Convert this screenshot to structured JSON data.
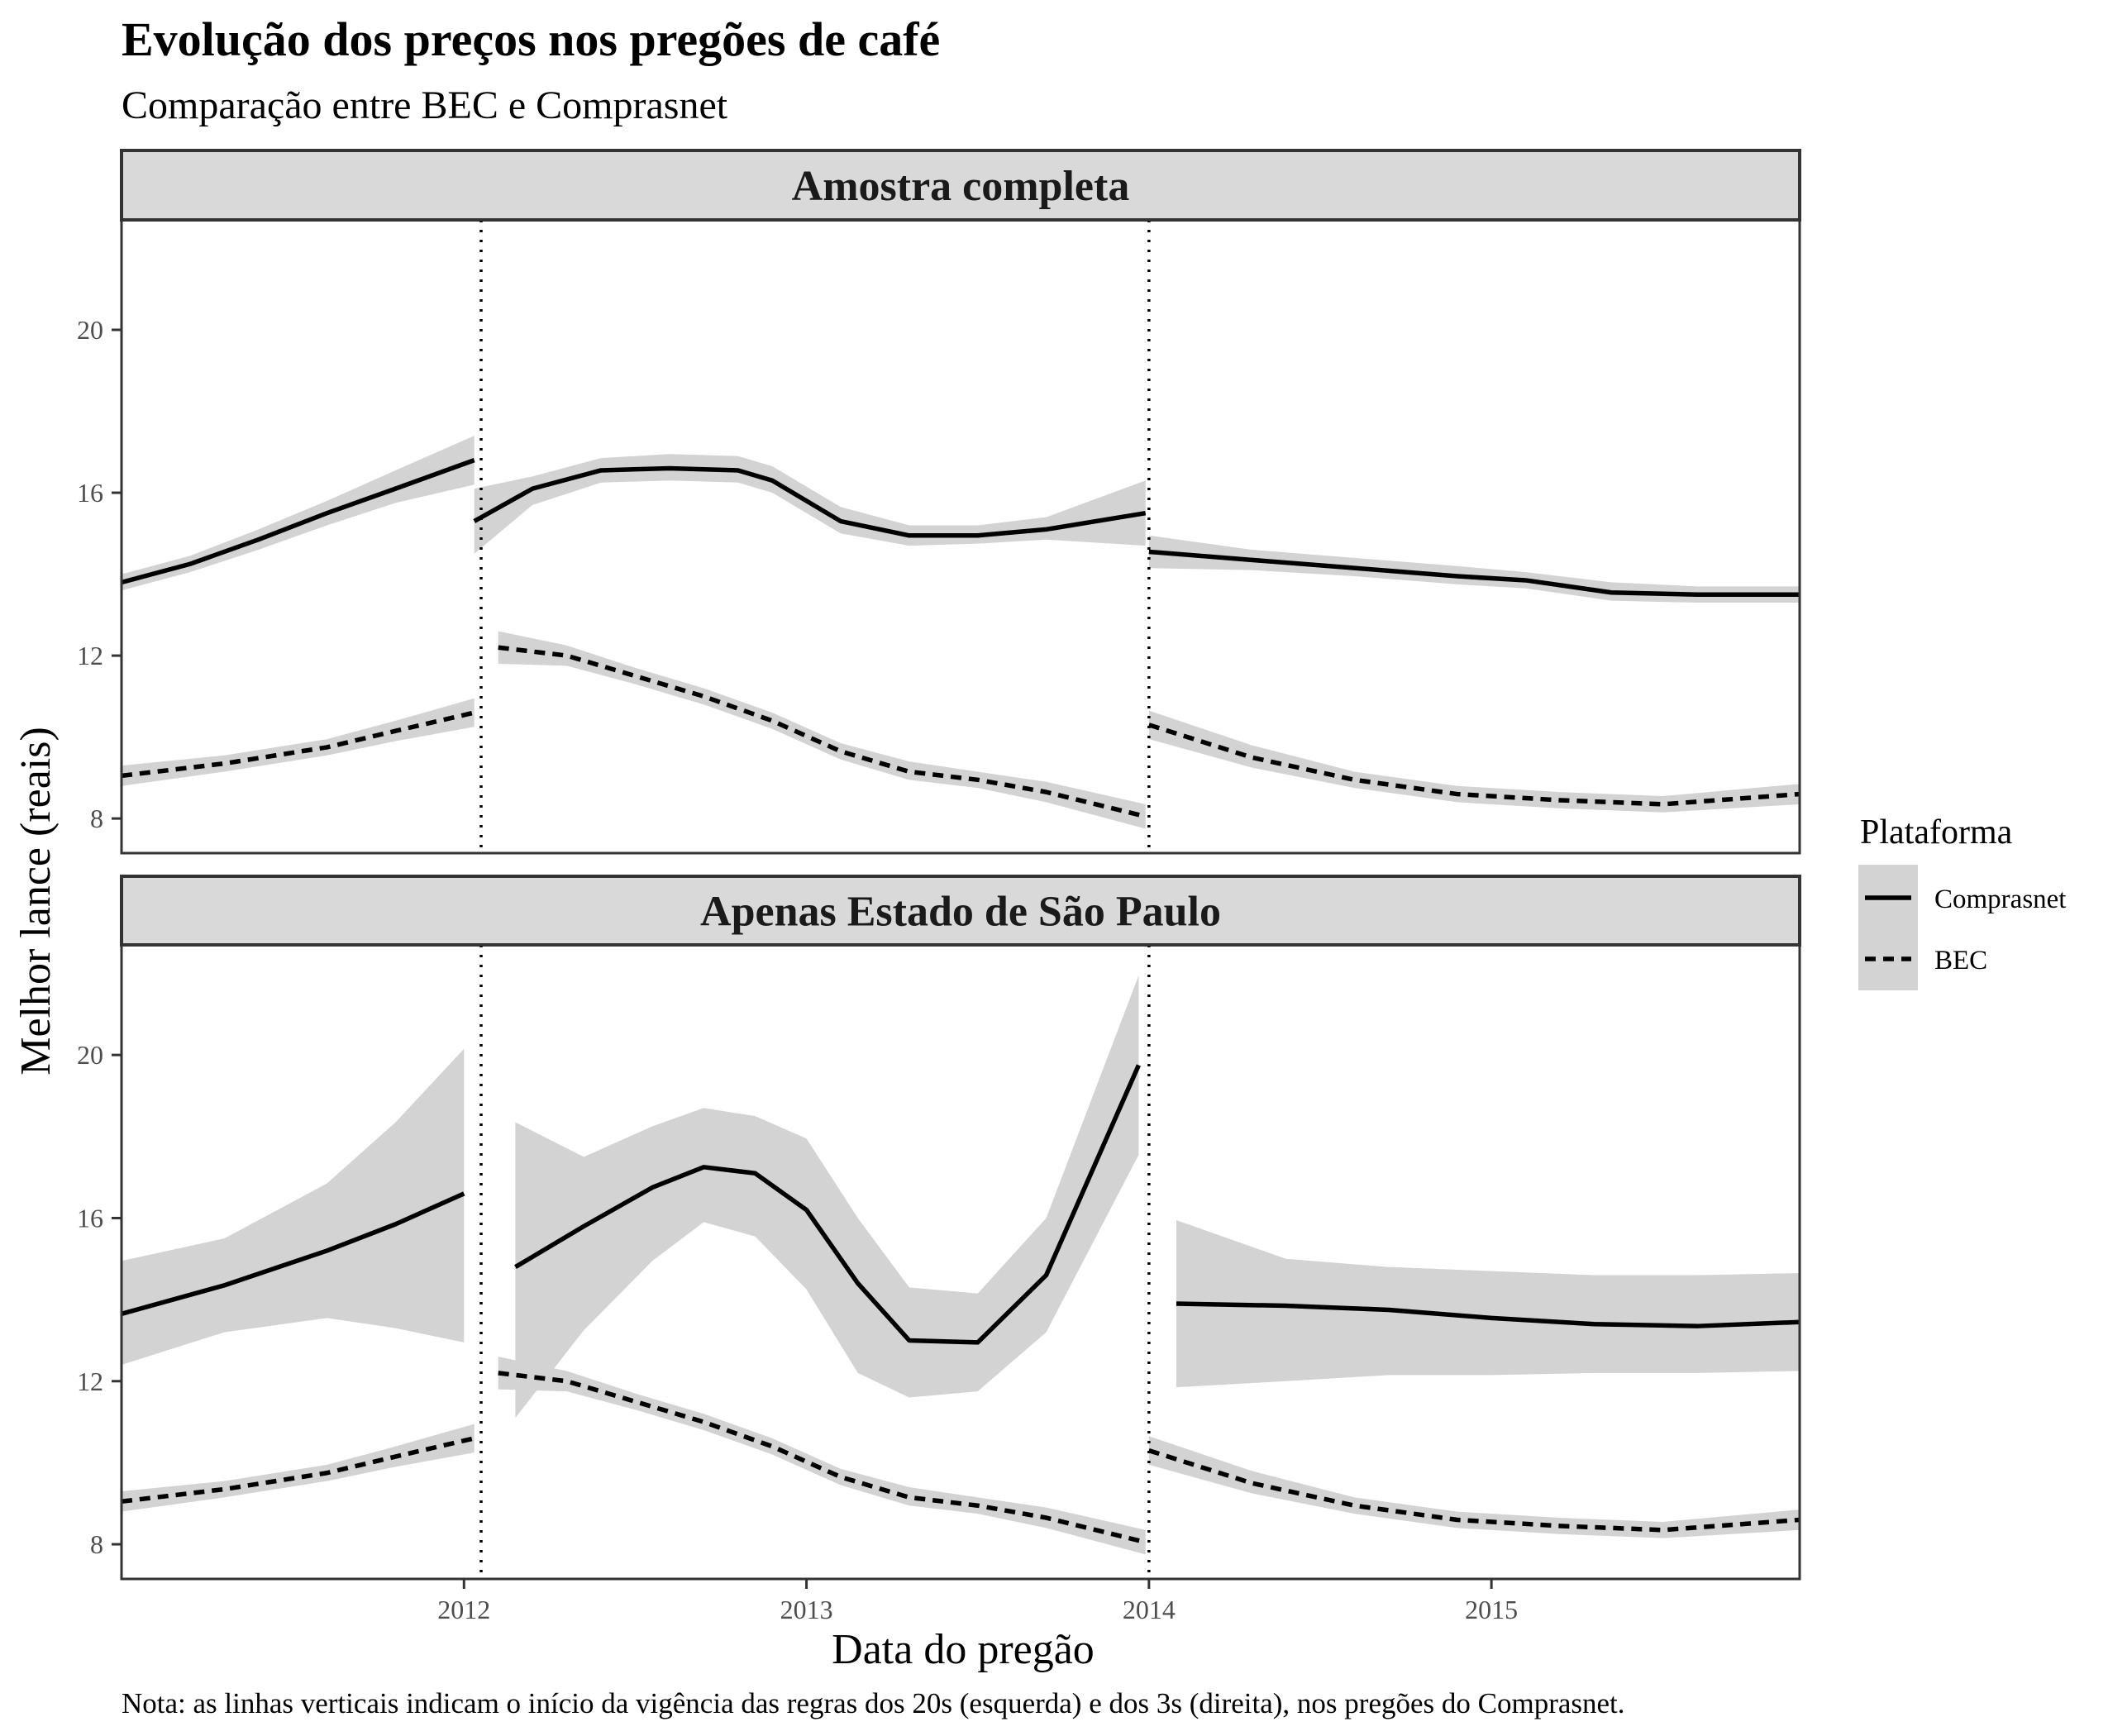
{
  "title": "Evolução dos preços nos pregões de café",
  "subtitle": "Comparação entre BEC e Comprasnet",
  "caption": "Nota: as linhas verticais indicam o início da vigência das regras dos 20s (esquerda) e dos 3s (direita), nos pregões do Comprasnet.",
  "x_axis_title": "Data do pregão",
  "y_axis_title": "Melhor lance (reais)",
  "legend": {
    "title": "Plataforma",
    "items": [
      {
        "label": "Comprasnet",
        "style": "solid"
      },
      {
        "label": "BEC",
        "style": "dashed"
      }
    ]
  },
  "colors": {
    "line": "#000000",
    "ribbon": "#d3d3d3",
    "strip_fill": "#d9d9d9",
    "strip_border": "#333333",
    "panel_border": "#333333",
    "tick_label": "#4d4d4d"
  },
  "chart_data": {
    "type": "line",
    "x_scale": "date",
    "xlim": [
      2011.0,
      2015.9
    ],
    "x_ticks": [
      {
        "value": 2012,
        "label": "2012"
      },
      {
        "value": 2013,
        "label": "2013"
      },
      {
        "value": 2014,
        "label": "2014"
      },
      {
        "value": 2015,
        "label": "2015"
      }
    ],
    "y_ticks": [
      8,
      12,
      16,
      20
    ],
    "ylim": [
      7.15,
      22.7
    ],
    "vlines": [
      {
        "x": 2012.05,
        "style": "dotted"
      },
      {
        "x": 2014.0,
        "style": "dotted"
      }
    ],
    "grid": false,
    "legend_position": "right",
    "panels": [
      {
        "name": "Amostra completa",
        "series": [
          {
            "name": "Comprasnet",
            "style": "solid",
            "segments": [
              {
                "x": [
                  2011.0,
                  2011.2,
                  2011.4,
                  2011.6,
                  2011.8,
                  2012.03
                ],
                "y": [
                  13.8,
                  14.25,
                  14.85,
                  15.5,
                  16.1,
                  16.8
                ],
                "lo": [
                  13.6,
                  14.05,
                  14.6,
                  15.2,
                  15.75,
                  16.2
                ],
                "hi": [
                  14.0,
                  14.45,
                  15.1,
                  15.8,
                  16.55,
                  17.4
                ]
              },
              {
                "x": [
                  2012.03,
                  2012.2,
                  2012.4,
                  2012.6,
                  2012.8,
                  2012.9,
                  2013.1,
                  2013.3,
                  2013.5,
                  2013.7,
                  2013.99
                ],
                "y": [
                  15.3,
                  16.1,
                  16.55,
                  16.6,
                  16.55,
                  16.3,
                  15.3,
                  14.95,
                  14.95,
                  15.1,
                  15.5
                ],
                "lo": [
                  14.5,
                  15.7,
                  16.25,
                  16.3,
                  16.25,
                  16.0,
                  15.0,
                  14.7,
                  14.75,
                  14.85,
                  14.7
                ],
                "hi": [
                  16.1,
                  16.4,
                  16.85,
                  16.95,
                  16.9,
                  16.65,
                  15.65,
                  15.2,
                  15.2,
                  15.4,
                  16.3
                ]
              },
              {
                "x": [
                  2014.0,
                  2014.3,
                  2014.6,
                  2014.9,
                  2015.1,
                  2015.35,
                  2015.6,
                  2015.9
                ],
                "y": [
                  14.55,
                  14.35,
                  14.15,
                  13.95,
                  13.85,
                  13.55,
                  13.5,
                  13.5
                ],
                "lo": [
                  14.15,
                  14.1,
                  13.95,
                  13.75,
                  13.65,
                  13.35,
                  13.3,
                  13.3
                ],
                "hi": [
                  14.95,
                  14.6,
                  14.4,
                  14.2,
                  14.05,
                  13.8,
                  13.7,
                  13.7
                ]
              }
            ]
          },
          {
            "name": "BEC",
            "style": "dashed",
            "segments": [
              {
                "x": [
                  2011.0,
                  2011.3,
                  2011.6,
                  2011.8,
                  2012.03
                ],
                "y": [
                  9.05,
                  9.35,
                  9.75,
                  10.15,
                  10.6
                ],
                "lo": [
                  8.8,
                  9.15,
                  9.55,
                  9.9,
                  10.25
                ],
                "hi": [
                  9.3,
                  9.55,
                  9.95,
                  10.4,
                  10.95
                ]
              },
              {
                "x": [
                  2012.1,
                  2012.3,
                  2012.5,
                  2012.7,
                  2012.9,
                  2013.1,
                  2013.3,
                  2013.5,
                  2013.7,
                  2013.99
                ],
                "y": [
                  12.2,
                  12.0,
                  11.5,
                  11.0,
                  10.4,
                  9.65,
                  9.15,
                  8.95,
                  8.65,
                  8.05
                ],
                "lo": [
                  11.8,
                  11.75,
                  11.3,
                  10.8,
                  10.2,
                  9.45,
                  8.95,
                  8.75,
                  8.4,
                  7.75
                ],
                "hi": [
                  12.6,
                  12.25,
                  11.7,
                  11.2,
                  10.6,
                  9.85,
                  9.4,
                  9.15,
                  8.9,
                  8.35
                ]
              },
              {
                "x": [
                  2014.0,
                  2014.3,
                  2014.6,
                  2014.9,
                  2015.2,
                  2015.5,
                  2015.9
                ],
                "y": [
                  10.3,
                  9.5,
                  8.95,
                  8.6,
                  8.45,
                  8.35,
                  8.6
                ],
                "lo": [
                  9.95,
                  9.25,
                  8.75,
                  8.4,
                  8.25,
                  8.15,
                  8.35
                ],
                "hi": [
                  10.65,
                  9.8,
                  9.15,
                  8.8,
                  8.65,
                  8.55,
                  8.85
                ]
              }
            ]
          }
        ]
      },
      {
        "name": "Apenas Estado de São Paulo",
        "series": [
          {
            "name": "Comprasnet",
            "style": "solid",
            "segments": [
              {
                "x": [
                  2011.0,
                  2011.3,
                  2011.6,
                  2011.8,
                  2012.0
                ],
                "y": [
                  13.65,
                  14.35,
                  15.2,
                  15.85,
                  16.6
                ],
                "lo": [
                  12.4,
                  13.2,
                  13.55,
                  13.3,
                  12.95
                ],
                "hi": [
                  14.95,
                  15.5,
                  16.85,
                  18.35,
                  20.15
                ]
              },
              {
                "x": [
                  2012.15,
                  2012.35,
                  2012.55,
                  2012.7,
                  2012.85,
                  2013.0,
                  2013.15,
                  2013.3,
                  2013.5,
                  2013.7,
                  2013.97
                ],
                "y": [
                  14.8,
                  15.8,
                  16.75,
                  17.25,
                  17.1,
                  16.2,
                  14.4,
                  13.0,
                  12.95,
                  14.6,
                  19.75
                ],
                "lo": [
                  11.1,
                  13.25,
                  14.95,
                  15.9,
                  15.55,
                  14.25,
                  12.2,
                  11.6,
                  11.75,
                  13.2,
                  17.55
                ],
                "hi": [
                  18.35,
                  17.5,
                  18.25,
                  18.7,
                  18.5,
                  17.95,
                  16.0,
                  14.3,
                  14.15,
                  16.0,
                  21.95
                ]
              },
              {
                "x": [
                  2014.08,
                  2014.4,
                  2014.7,
                  2015.0,
                  2015.3,
                  2015.6,
                  2015.9
                ],
                "y": [
                  13.9,
                  13.85,
                  13.75,
                  13.55,
                  13.4,
                  13.35,
                  13.45
                ],
                "lo": [
                  11.85,
                  12.0,
                  12.15,
                  12.15,
                  12.2,
                  12.2,
                  12.25
                ],
                "hi": [
                  15.95,
                  15.0,
                  14.8,
                  14.7,
                  14.6,
                  14.6,
                  14.65
                ]
              }
            ]
          },
          {
            "name": "BEC",
            "style": "dashed",
            "segments": [
              {
                "x": [
                  2011.0,
                  2011.3,
                  2011.6,
                  2011.8,
                  2012.03
                ],
                "y": [
                  9.05,
                  9.35,
                  9.75,
                  10.15,
                  10.6
                ],
                "lo": [
                  8.8,
                  9.15,
                  9.55,
                  9.9,
                  10.25
                ],
                "hi": [
                  9.3,
                  9.55,
                  9.95,
                  10.4,
                  10.95
                ]
              },
              {
                "x": [
                  2012.1,
                  2012.3,
                  2012.5,
                  2012.7,
                  2012.9,
                  2013.1,
                  2013.3,
                  2013.5,
                  2013.7,
                  2013.99
                ],
                "y": [
                  12.2,
                  12.0,
                  11.5,
                  11.0,
                  10.4,
                  9.65,
                  9.15,
                  8.95,
                  8.65,
                  8.05
                ],
                "lo": [
                  11.8,
                  11.75,
                  11.3,
                  10.8,
                  10.2,
                  9.45,
                  8.95,
                  8.75,
                  8.4,
                  7.75
                ],
                "hi": [
                  12.6,
                  12.25,
                  11.7,
                  11.2,
                  10.6,
                  9.85,
                  9.4,
                  9.15,
                  8.9,
                  8.35
                ]
              },
              {
                "x": [
                  2014.0,
                  2014.3,
                  2014.6,
                  2014.9,
                  2015.2,
                  2015.5,
                  2015.9
                ],
                "y": [
                  10.3,
                  9.5,
                  8.95,
                  8.6,
                  8.45,
                  8.35,
                  8.6
                ],
                "lo": [
                  9.95,
                  9.25,
                  8.75,
                  8.4,
                  8.25,
                  8.15,
                  8.35
                ],
                "hi": [
                  10.65,
                  9.8,
                  9.15,
                  8.8,
                  8.65,
                  8.55,
                  8.85
                ]
              }
            ]
          }
        ]
      }
    ]
  }
}
